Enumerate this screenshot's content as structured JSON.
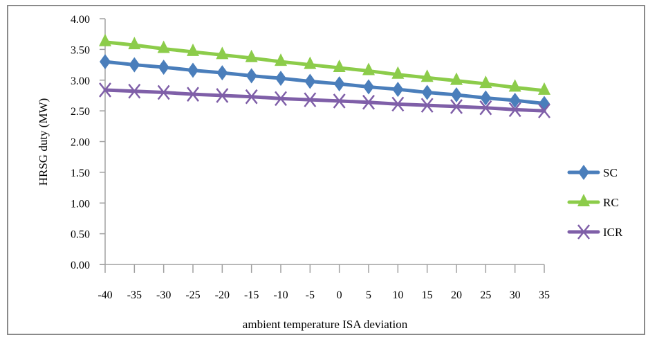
{
  "chart_data": {
    "type": "line",
    "title": "",
    "xlabel": "ambient temperature ISA deviation",
    "ylabel": "HRSG duty (MW)",
    "ylim": [
      0,
      4
    ],
    "yticks": [
      "0.00",
      "0.50",
      "1.00",
      "1.50",
      "2.00",
      "2.50",
      "3.00",
      "3.50",
      "4.00"
    ],
    "ytick_values": [
      0,
      0.5,
      1,
      1.5,
      2,
      2.5,
      3,
      3.5,
      4
    ],
    "categories": [
      "-40",
      "-35",
      "-30",
      "-25",
      "-20",
      "-15",
      "-10",
      "-5",
      "0",
      "5",
      "10",
      "15",
      "20",
      "25",
      "30",
      "35"
    ],
    "grid": false,
    "legend_position": "right",
    "series": [
      {
        "name": "SC",
        "color": "#4a7ebb",
        "marker": "diamond",
        "values": [
          3.3,
          3.25,
          3.21,
          3.16,
          3.12,
          3.07,
          3.03,
          2.98,
          2.94,
          2.89,
          2.85,
          2.8,
          2.76,
          2.71,
          2.67,
          2.62
        ]
      },
      {
        "name": "RC",
        "color": "#8ccc4a",
        "marker": "triangle",
        "values": [
          3.62,
          3.57,
          3.51,
          3.46,
          3.41,
          3.36,
          3.3,
          3.25,
          3.2,
          3.15,
          3.09,
          3.04,
          2.99,
          2.94,
          2.88,
          2.83
        ]
      },
      {
        "name": "ICR",
        "color": "#7f5fa8",
        "marker": "x",
        "values": [
          2.84,
          2.82,
          2.8,
          2.77,
          2.75,
          2.73,
          2.7,
          2.68,
          2.66,
          2.64,
          2.61,
          2.59,
          2.57,
          2.55,
          2.52,
          2.5
        ]
      }
    ]
  }
}
